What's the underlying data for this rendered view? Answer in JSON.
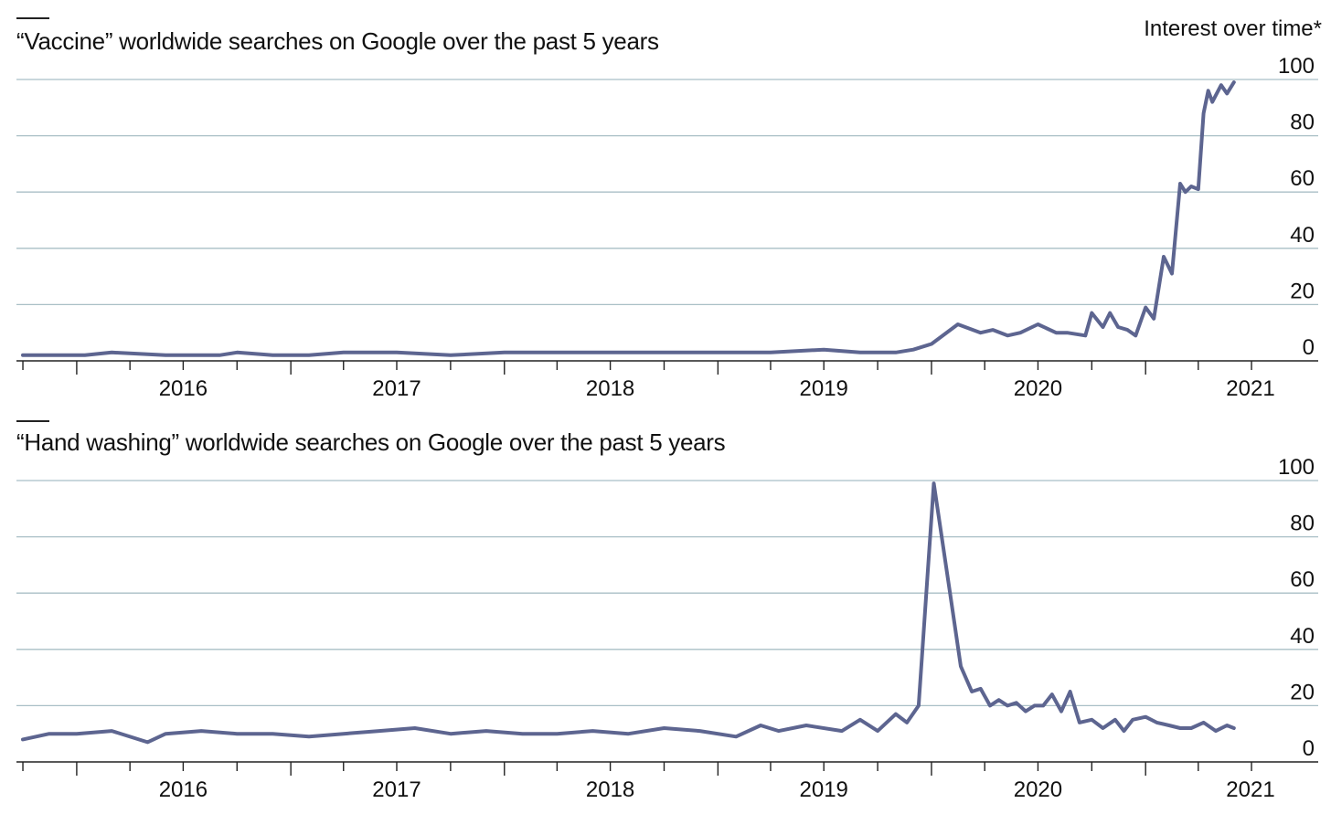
{
  "chart_data": [
    {
      "type": "line",
      "title": "“Vaccine” worldwide searches on Google over the past 5 years",
      "units_label": "Interest over time*",
      "ylim": [
        0,
        100
      ],
      "y_ticks": [
        0,
        20,
        40,
        60,
        80,
        100
      ],
      "x_range": [
        "2015-09-20",
        "2021-07-15"
      ],
      "year_labels": [
        "2016",
        "2017",
        "2018",
        "2019",
        "2020",
        "2021"
      ],
      "grid": true,
      "line_color": "#5d6590",
      "grid_color": "#a9bfc6",
      "series": [
        {
          "x": [
            "2015-10-01",
            "2016-01-15",
            "2016-03-01",
            "2016-06-01",
            "2016-09-01",
            "2016-10-01",
            "2016-12-01",
            "2017-02-01",
            "2017-04-01",
            "2017-07-01",
            "2017-10-01",
            "2018-01-01",
            "2018-04-01",
            "2018-07-01",
            "2018-10-01",
            "2019-01-01",
            "2019-04-01",
            "2019-07-01",
            "2019-09-01",
            "2019-10-01",
            "2019-11-01",
            "2019-12-01",
            "2020-01-01",
            "2020-02-15",
            "2020-03-25",
            "2020-04-15",
            "2020-05-10",
            "2020-06-01",
            "2020-07-01",
            "2020-08-01",
            "2020-08-20",
            "2020-09-20",
            "2020-10-01",
            "2020-10-20",
            "2020-11-01",
            "2020-11-15",
            "2020-12-01",
            "2020-12-15",
            "2021-01-01",
            "2021-01-15",
            "2021-02-01",
            "2021-02-15",
            "2021-03-01",
            "2021-03-10",
            "2021-03-20",
            "2021-04-01",
            "2021-04-10",
            "2021-04-18",
            "2021-04-25",
            "2021-05-10",
            "2021-05-20",
            "2021-06-01"
          ],
          "y": [
            2,
            2,
            3,
            2,
            2,
            3,
            2,
            2,
            3,
            3,
            2,
            3,
            3,
            3,
            3,
            3,
            3,
            4,
            3,
            3,
            3,
            4,
            6,
            13,
            10,
            11,
            9,
            10,
            13,
            10,
            10,
            9,
            17,
            12,
            17,
            12,
            11,
            9,
            19,
            15,
            37,
            31,
            63,
            60,
            62,
            61,
            88,
            96,
            92,
            98,
            95,
            99
          ]
        }
      ]
    },
    {
      "type": "line",
      "title": "“Hand washing” worldwide searches on Google over the past 5 years",
      "ylim": [
        0,
        100
      ],
      "y_ticks": [
        0,
        20,
        40,
        60,
        80,
        100
      ],
      "x_range": [
        "2015-09-20",
        "2021-07-15"
      ],
      "year_labels": [
        "2016",
        "2017",
        "2018",
        "2019",
        "2020",
        "2021"
      ],
      "grid": true,
      "line_color": "#5d6590",
      "grid_color": "#a9bfc6",
      "series": [
        {
          "x": [
            "2015-10-01",
            "2015-11-15",
            "2016-01-01",
            "2016-03-01",
            "2016-05-01",
            "2016-06-01",
            "2016-08-01",
            "2016-10-01",
            "2016-12-01",
            "2017-02-01",
            "2017-04-01",
            "2017-06-01",
            "2017-08-01",
            "2017-10-01",
            "2017-12-01",
            "2018-02-01",
            "2018-04-01",
            "2018-06-01",
            "2018-08-01",
            "2018-10-01",
            "2018-12-01",
            "2019-02-01",
            "2019-03-15",
            "2019-04-15",
            "2019-06-01",
            "2019-08-01",
            "2019-09-01",
            "2019-10-01",
            "2019-11-01",
            "2019-11-20",
            "2019-12-10",
            "2020-01-05",
            "2020-02-01",
            "2020-02-20",
            "2020-03-10",
            "2020-03-25",
            "2020-04-10",
            "2020-04-25",
            "2020-05-10",
            "2020-05-25",
            "2020-06-10",
            "2020-06-25",
            "2020-07-10",
            "2020-07-25",
            "2020-08-10",
            "2020-08-25",
            "2020-09-10",
            "2020-10-01",
            "2020-10-20",
            "2020-11-10",
            "2020-11-25",
            "2020-12-10",
            "2021-01-01",
            "2021-01-20",
            "2021-02-10",
            "2021-03-01",
            "2021-03-20",
            "2021-04-10",
            "2021-05-01",
            "2021-05-20",
            "2021-06-01"
          ],
          "y": [
            8,
            10,
            10,
            11,
            7,
            10,
            11,
            10,
            10,
            9,
            10,
            11,
            12,
            10,
            11,
            10,
            10,
            11,
            10,
            12,
            11,
            9,
            13,
            11,
            13,
            11,
            15,
            11,
            17,
            14,
            20,
            99,
            61,
            34,
            25,
            26,
            20,
            22,
            20,
            21,
            18,
            20,
            20,
            24,
            18,
            25,
            14,
            15,
            12,
            15,
            11,
            15,
            16,
            14,
            13,
            12,
            12,
            14,
            11,
            13,
            12
          ]
        }
      ]
    }
  ]
}
